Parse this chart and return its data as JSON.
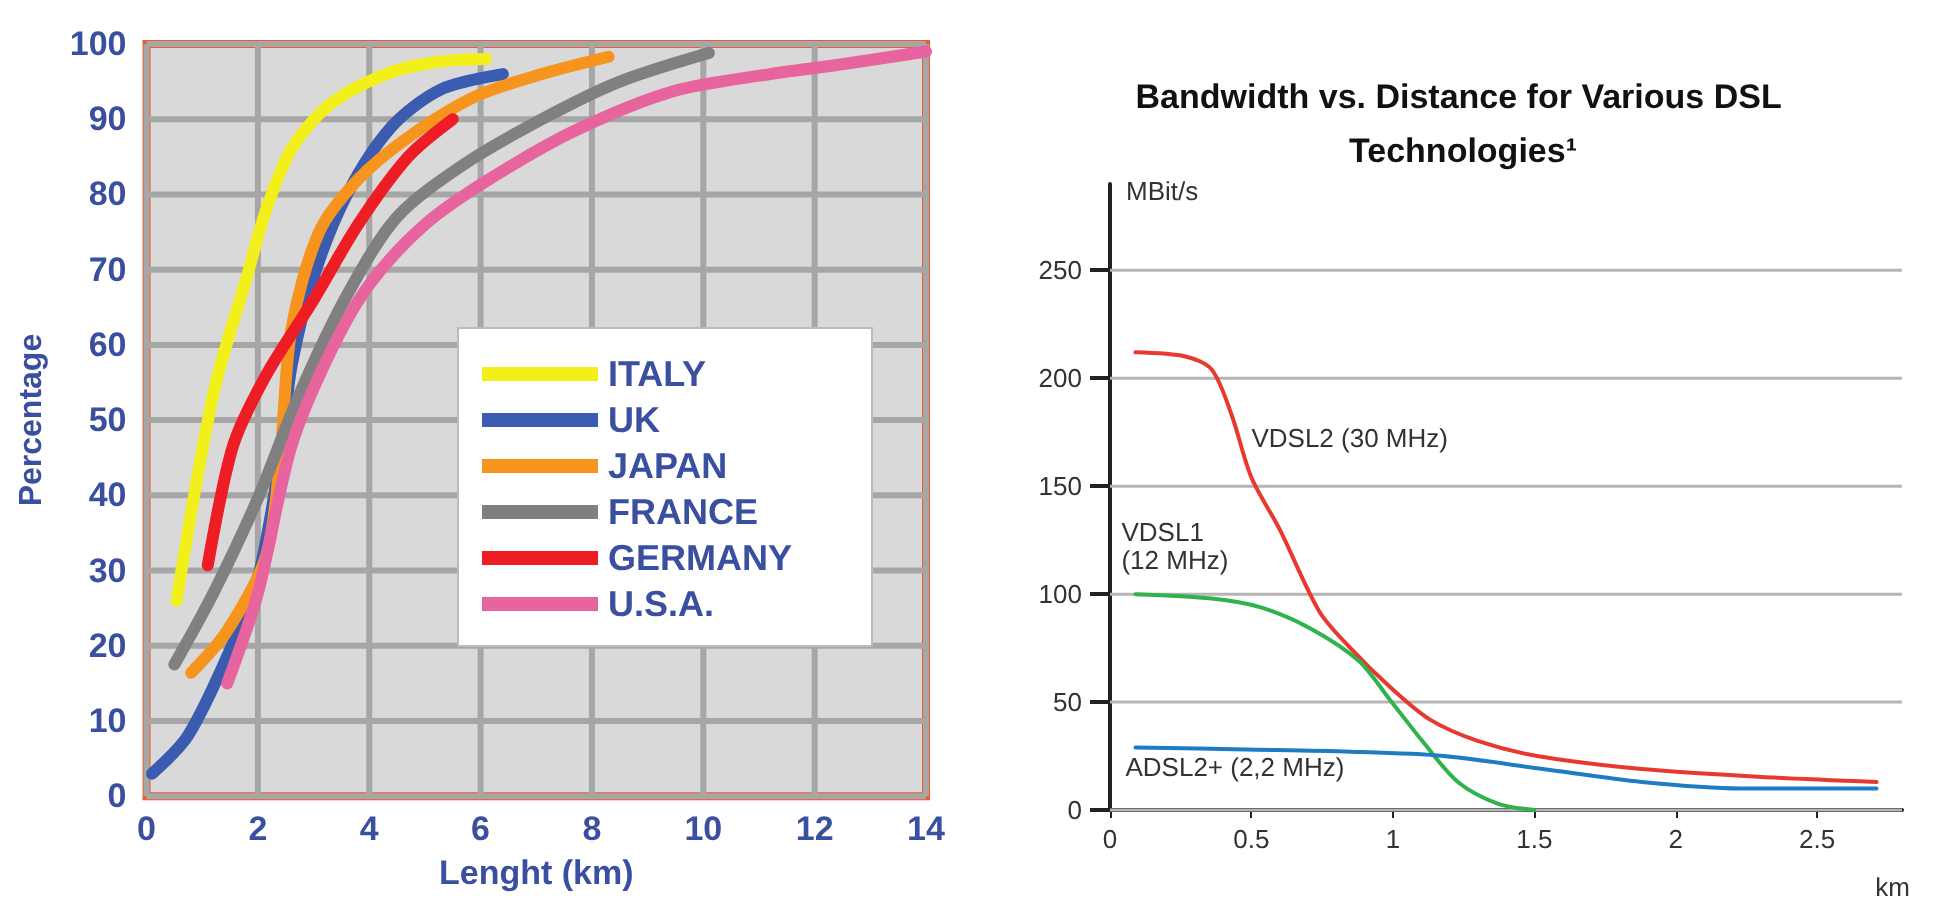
{
  "chart_data": [
    {
      "type": "line",
      "xlabel": "Lenght (km)",
      "ylabel": "Percentage",
      "xlim": [
        0,
        14
      ],
      "xticks": [
        0,
        2,
        4,
        6,
        8,
        10,
        12,
        14
      ],
      "ylim": [
        0,
        100
      ],
      "yticks": [
        0,
        10,
        20,
        30,
        40,
        50,
        60,
        70,
        80,
        90,
        100
      ],
      "grid": true,
      "legend": "right",
      "marker": "none",
      "series": [
        {
          "name": "ITALY",
          "color": "#f2ef1a",
          "x": [
            0.54,
            1.2,
            1.8,
            2.15,
            2.6,
            3.3,
            4.3,
            5.2,
            6.1
          ],
          "values": [
            26,
            53.5,
            69,
            78,
            86,
            92,
            96,
            97.6,
            98
          ]
        },
        {
          "name": "UK",
          "color": "#3a5bb0",
          "x": [
            0.1,
            0.74,
            1.45,
            2.0,
            2.4,
            2.6,
            3.0,
            3.6,
            4.4,
            5.3,
            6.4
          ],
          "values": [
            3,
            8,
            18.6,
            29,
            45,
            57,
            69,
            80,
            89,
            94,
            96
          ]
        },
        {
          "name": "JAPAN",
          "color": "#f7941d",
          "x": [
            0.8,
            1.45,
            2.15,
            2.4,
            2.6,
            3.1,
            3.8,
            4.7,
            5.9,
            7.1,
            8.3
          ],
          "values": [
            16.4,
            22,
            32,
            45,
            62,
            75,
            82,
            87.6,
            93,
            96,
            98.3
          ]
        },
        {
          "name": "FRANCE",
          "color": "#808080",
          "x": [
            0.5,
            1.2,
            2.0,
            2.75,
            3.6,
            4.5,
            5.7,
            7.1,
            8.5,
            10.1
          ],
          "values": [
            17.5,
            27,
            39.6,
            53.5,
            66.6,
            77,
            84,
            90,
            95,
            98.8
          ]
        },
        {
          "name": "GERMANY",
          "color": "#ee1c25",
          "x": [
            1.1,
            1.55,
            2.15,
            3.0,
            3.8,
            4.7,
            5.5
          ],
          "values": [
            30.7,
            46.5,
            56,
            66,
            76,
            85,
            90
          ]
        },
        {
          "name": "U.S.A.",
          "color": "#e8649f",
          "x": [
            1.45,
            2.0,
            2.6,
            3.3,
            4.0,
            5.0,
            6.15,
            7.7,
            9.45,
            11.2,
            12.4,
            14
          ],
          "values": [
            15,
            27,
            46.5,
            59,
            68,
            76,
            82,
            88.5,
            93.7,
            96,
            97.2,
            99
          ]
        }
      ]
    },
    {
      "type": "line",
      "title": "Bandwidth vs. Distance for Various DSL Technologies¹",
      "xlabel": "km",
      "ylabel": "MBit/s",
      "xlim": [
        0,
        2.8
      ],
      "xticks": [
        0,
        0.5,
        1,
        1.5,
        2,
        2.5
      ],
      "ylim": [
        0,
        290
      ],
      "yticks": [
        0,
        50,
        100,
        150,
        200,
        250
      ],
      "grid": "y",
      "marker": "none",
      "series": [
        {
          "name": "VDSL2 (30 MHz)",
          "color": "#e8392f",
          "x": [
            0.09,
            0.27,
            0.36,
            0.43,
            0.5,
            0.6,
            0.74,
            0.85,
            0.99,
            1.13,
            1.3,
            1.51,
            1.88,
            2.35,
            2.71
          ],
          "values": [
            212,
            210,
            204,
            183,
            154,
            130,
            92,
            75,
            57,
            42,
            32,
            25,
            19,
            15,
            13
          ]
        },
        {
          "name": "VDSL1 (12 MHz)",
          "color": "#2fb34a",
          "x": [
            0.09,
            0.36,
            0.53,
            0.71,
            0.88,
            0.99,
            1.11,
            1.23,
            1.37,
            1.5
          ],
          "values": [
            100,
            98,
            94,
            84,
            69,
            51,
            31,
            13,
            3,
            0
          ]
        },
        {
          "name": "ADSL2+ (2,2 MHz)",
          "color": "#1f7cc1",
          "x": [
            0.09,
            0.48,
            0.85,
            1.18,
            1.53,
            1.88,
            2.23,
            2.71
          ],
          "values": [
            29,
            28,
            27,
            25,
            19,
            13,
            10,
            10
          ]
        }
      ]
    }
  ]
}
